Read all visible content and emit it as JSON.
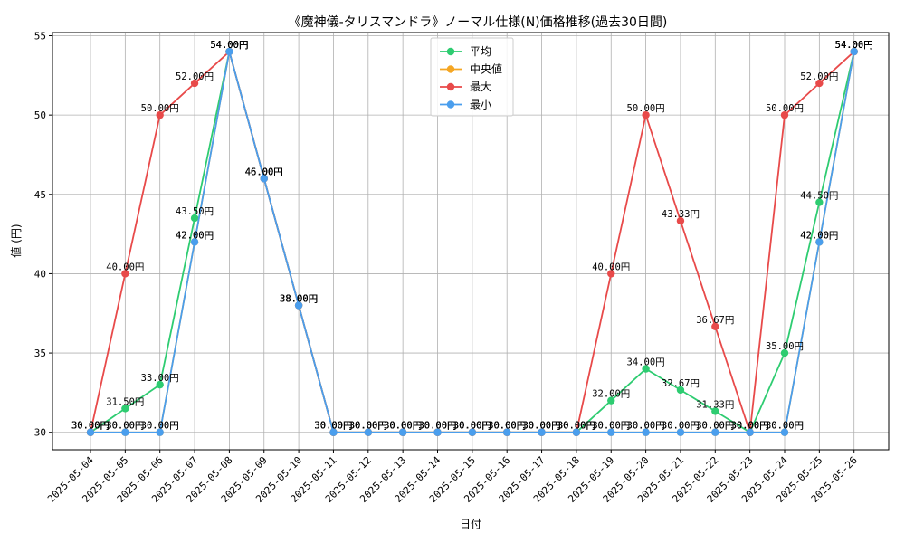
{
  "chart_data": {
    "type": "line",
    "title": "《魔神儀-タリスマンドラ》ノーマル仕様(N)価格推移(過去30日間)",
    "xlabel": "日付",
    "ylabel": "値 (円)",
    "ylim": [
      28.9,
      55.2
    ],
    "yticks": [
      30,
      35,
      40,
      45,
      50,
      55
    ],
    "grid": true,
    "legend_position": "top-center",
    "categories": [
      "2025-05-04",
      "2025-05-05",
      "2025-05-06",
      "2025-05-07",
      "2025-05-08",
      "2025-05-09",
      "2025-05-10",
      "2025-05-11",
      "2025-05-12",
      "2025-05-13",
      "2025-05-14",
      "2025-05-15",
      "2025-05-16",
      "2025-05-17",
      "2025-05-18",
      "2025-05-19",
      "2025-05-20",
      "2025-05-21",
      "2025-05-22",
      "2025-05-23",
      "2025-05-24",
      "2025-05-25",
      "2025-05-26"
    ],
    "series": [
      {
        "name": "平均",
        "color": "#2ecc71",
        "values": [
          30,
          31.5,
          33,
          43.5,
          54,
          46,
          38,
          30,
          30,
          30,
          30,
          30,
          30,
          30,
          30,
          32,
          34,
          32.67,
          31.33,
          30,
          35,
          44.5,
          54
        ]
      },
      {
        "name": "中央値",
        "color": "#f5a623",
        "values": [
          30,
          30,
          30,
          42,
          54,
          46,
          38,
          30,
          30,
          30,
          30,
          30,
          30,
          30,
          30,
          30,
          30,
          30,
          30,
          30,
          30,
          42,
          54
        ]
      },
      {
        "name": "最大",
        "color": "#e84a4a",
        "values": [
          30,
          40,
          50,
          52,
          54,
          46,
          38,
          30,
          30,
          30,
          30,
          30,
          30,
          30,
          30,
          40,
          50,
          43.33,
          36.67,
          30,
          50,
          52,
          54
        ]
      },
      {
        "name": "最小",
        "color": "#4a9eed",
        "values": [
          30,
          30,
          30,
          42,
          54,
          46,
          38,
          30,
          30,
          30,
          30,
          30,
          30,
          30,
          30,
          30,
          30,
          30,
          30,
          30,
          30,
          42,
          54
        ]
      }
    ],
    "value_suffix": "円"
  }
}
